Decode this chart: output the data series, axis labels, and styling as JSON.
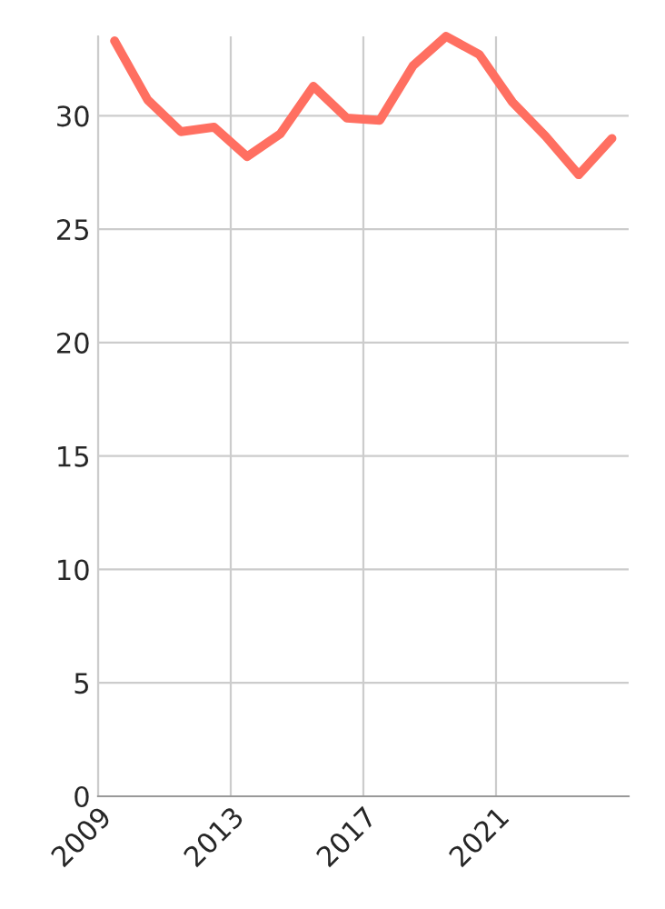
{
  "chart_data": {
    "type": "line",
    "x": [
      "2009-07",
      "2010-07",
      "2011-07",
      "2012-07",
      "2013-07",
      "2014-07",
      "2015-07",
      "2016-07",
      "2017-07",
      "2018-07",
      "2019-07",
      "2020-07",
      "2021-07",
      "2022-07",
      "2023-07",
      "2024-07"
    ],
    "series": [
      {
        "color": "#ff6f61",
        "values": [
          33.3,
          30.7,
          29.3,
          29.5,
          28.2,
          29.2,
          31.3,
          29.9,
          29.8,
          32.2,
          33.5,
          32.7,
          30.6,
          29.1,
          27.4,
          29.0
        ]
      }
    ],
    "xlim": [
      "2009",
      "2025"
    ],
    "xticks": [
      "2009",
      "2013",
      "2017",
      "2021"
    ],
    "ylim": [
      0,
      33.5
    ],
    "yticks": [
      0,
      5,
      10,
      15,
      20,
      25,
      30
    ],
    "grid": true,
    "marker": "none",
    "line_style": "solid"
  }
}
